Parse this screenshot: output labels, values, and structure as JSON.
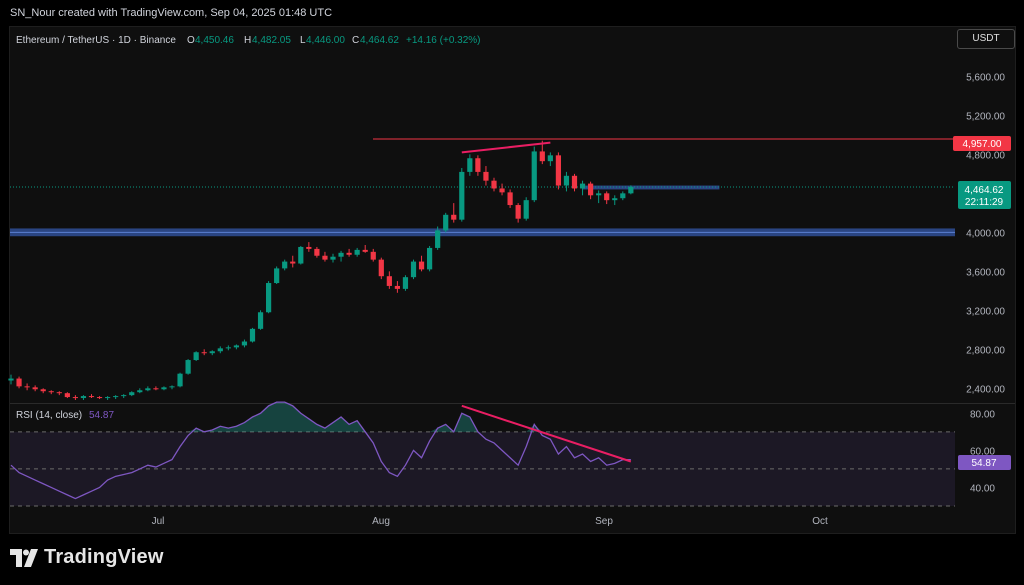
{
  "header": {
    "attribution": "SN_Nour created with TradingView.com, Sep 04, 2025 01:48 UTC"
  },
  "legend": {
    "symbol": "Ethereum / TetherUS · 1D · Binance",
    "o_label": "O",
    "o_value": "4,450.46",
    "h_label": "H",
    "h_value": "4,482.05",
    "l_label": "L",
    "l_value": "4,446.00",
    "c_label": "C",
    "c_value": "4,464.62",
    "change": "+14.16 (+0.32%)"
  },
  "currency_badge": "USDT",
  "price_tags": {
    "resistance": "4,957.00",
    "last": "4,464.62",
    "countdown": "22:11:29",
    "rsi": "54.87"
  },
  "rsi_legend": {
    "name": "RSI (14, close)",
    "value": "54.87"
  },
  "colors": {
    "up": "#089981",
    "down": "#f23645",
    "resistance": "#f23645",
    "zone": "#2e4b8f",
    "rsi_line": "#7e57c2",
    "trend": "#e91e63"
  },
  "branding": {
    "logo_text": "TradingView"
  },
  "chart_data": [
    {
      "type": "candlestick",
      "title": "Ethereum / TetherUS · 1D · Binance",
      "y_tick_labels": [
        "5,600.00",
        "5,200.00",
        "4,800.00",
        "4,000.00",
        "3,600.00",
        "3,200.00",
        "2,800.00",
        "2,400.00"
      ],
      "x_tick_labels": [
        "Jul",
        "Aug",
        "Sep",
        "Oct"
      ],
      "ylim": [
        2280,
        5850
      ],
      "candles": [
        [
          2480,
          2540,
          2440,
          2500
        ],
        [
          2500,
          2520,
          2400,
          2420
        ],
        [
          2420,
          2450,
          2380,
          2410
        ],
        [
          2410,
          2430,
          2370,
          2390
        ],
        [
          2390,
          2400,
          2350,
          2370
        ],
        [
          2370,
          2380,
          2340,
          2360
        ],
        [
          2360,
          2370,
          2330,
          2350
        ],
        [
          2350,
          2360,
          2300,
          2310
        ],
        [
          2310,
          2330,
          2280,
          2300
        ],
        [
          2300,
          2330,
          2280,
          2320
        ],
        [
          2320,
          2340,
          2300,
          2310
        ],
        [
          2310,
          2320,
          2290,
          2300
        ],
        [
          2300,
          2320,
          2280,
          2310
        ],
        [
          2310,
          2330,
          2290,
          2320
        ],
        [
          2320,
          2340,
          2300,
          2330
        ],
        [
          2330,
          2370,
          2320,
          2360
        ],
        [
          2360,
          2400,
          2350,
          2380
        ],
        [
          2380,
          2420,
          2370,
          2400
        ],
        [
          2400,
          2420,
          2380,
          2390
        ],
        [
          2390,
          2420,
          2380,
          2410
        ],
        [
          2410,
          2430,
          2390,
          2420
        ],
        [
          2420,
          2560,
          2410,
          2550
        ],
        [
          2550,
          2700,
          2540,
          2690
        ],
        [
          2690,
          2780,
          2680,
          2770
        ],
        [
          2770,
          2800,
          2740,
          2760
        ],
        [
          2760,
          2790,
          2740,
          2780
        ],
        [
          2780,
          2830,
          2760,
          2810
        ],
        [
          2810,
          2840,
          2790,
          2820
        ],
        [
          2820,
          2850,
          2800,
          2840
        ],
        [
          2840,
          2900,
          2820,
          2880
        ],
        [
          2880,
          3020,
          2870,
          3010
        ],
        [
          3010,
          3200,
          3000,
          3180
        ],
        [
          3180,
          3500,
          3170,
          3480
        ],
        [
          3480,
          3650,
          3470,
          3630
        ],
        [
          3630,
          3720,
          3610,
          3700
        ],
        [
          3700,
          3760,
          3640,
          3680
        ],
        [
          3680,
          3860,
          3670,
          3850
        ],
        [
          3850,
          3900,
          3800,
          3830
        ],
        [
          3830,
          3850,
          3740,
          3760
        ],
        [
          3760,
          3800,
          3700,
          3720
        ],
        [
          3720,
          3780,
          3690,
          3750
        ],
        [
          3750,
          3810,
          3700,
          3790
        ],
        [
          3790,
          3830,
          3750,
          3770
        ],
        [
          3770,
          3840,
          3750,
          3820
        ],
        [
          3820,
          3870,
          3790,
          3800
        ],
        [
          3800,
          3830,
          3700,
          3720
        ],
        [
          3720,
          3740,
          3520,
          3550
        ],
        [
          3550,
          3600,
          3420,
          3450
        ],
        [
          3450,
          3500,
          3380,
          3420
        ],
        [
          3420,
          3560,
          3400,
          3540
        ],
        [
          3540,
          3720,
          3520,
          3700
        ],
        [
          3700,
          3760,
          3600,
          3620
        ],
        [
          3620,
          3860,
          3600,
          3840
        ],
        [
          3840,
          4060,
          3820,
          4020
        ],
        [
          4020,
          4200,
          4000,
          4180
        ],
        [
          4180,
          4300,
          4100,
          4130
        ],
        [
          4130,
          4660,
          4110,
          4620
        ],
        [
          4620,
          4800,
          4580,
          4760
        ],
        [
          4760,
          4790,
          4580,
          4620
        ],
        [
          4620,
          4680,
          4480,
          4530
        ],
        [
          4530,
          4560,
          4420,
          4450
        ],
        [
          4450,
          4500,
          4380,
          4410
        ],
        [
          4410,
          4440,
          4250,
          4280
        ],
        [
          4280,
          4300,
          4100,
          4140
        ],
        [
          4140,
          4360,
          4120,
          4330
        ],
        [
          4330,
          4880,
          4310,
          4830
        ],
        [
          4830,
          4940,
          4700,
          4730
        ],
        [
          4730,
          4820,
          4680,
          4790
        ],
        [
          4790,
          4820,
          4440,
          4480
        ],
        [
          4480,
          4620,
          4420,
          4580
        ],
        [
          4580,
          4600,
          4420,
          4450
        ],
        [
          4450,
          4530,
          4380,
          4500
        ],
        [
          4500,
          4520,
          4340,
          4380
        ],
        [
          4380,
          4430,
          4300,
          4400
        ],
        [
          4400,
          4420,
          4290,
          4330
        ],
        [
          4330,
          4380,
          4280,
          4350
        ],
        [
          4350,
          4420,
          4330,
          4400
        ],
        [
          4400,
          4482,
          4390,
          4465
        ]
      ],
      "resistance_level": 4957,
      "support_zone": [
        3960,
        4040
      ],
      "minor_zone": [
        4440,
        4480
      ],
      "trendline": {
        "from": [
          56,
          4820
        ],
        "to": [
          67,
          4920
        ]
      }
    },
    {
      "type": "line",
      "title": "RSI (14, close)",
      "y_tick_labels": [
        "80.00",
        "60.00",
        "40.00"
      ],
      "ylim": [
        30,
        85
      ],
      "bands": [
        30,
        70
      ],
      "values": [
        52,
        48,
        46,
        44,
        42,
        40,
        38,
        36,
        34,
        36,
        38,
        40,
        44,
        46,
        47,
        48,
        50,
        52,
        51,
        53,
        55,
        62,
        68,
        72,
        70,
        71,
        73,
        72,
        73,
        75,
        78,
        80,
        84,
        86,
        86,
        84,
        80,
        77,
        74,
        72,
        75,
        78,
        74,
        76,
        70,
        64,
        54,
        48,
        46,
        52,
        60,
        56,
        65,
        72,
        74,
        70,
        80,
        78,
        70,
        66,
        64,
        60,
        56,
        52,
        62,
        74,
        68,
        66,
        58,
        62,
        56,
        58,
        54,
        56,
        52,
        53,
        55,
        55
      ],
      "trendline": {
        "from": [
          56,
          84
        ],
        "to": [
          77,
          54
        ]
      }
    }
  ]
}
